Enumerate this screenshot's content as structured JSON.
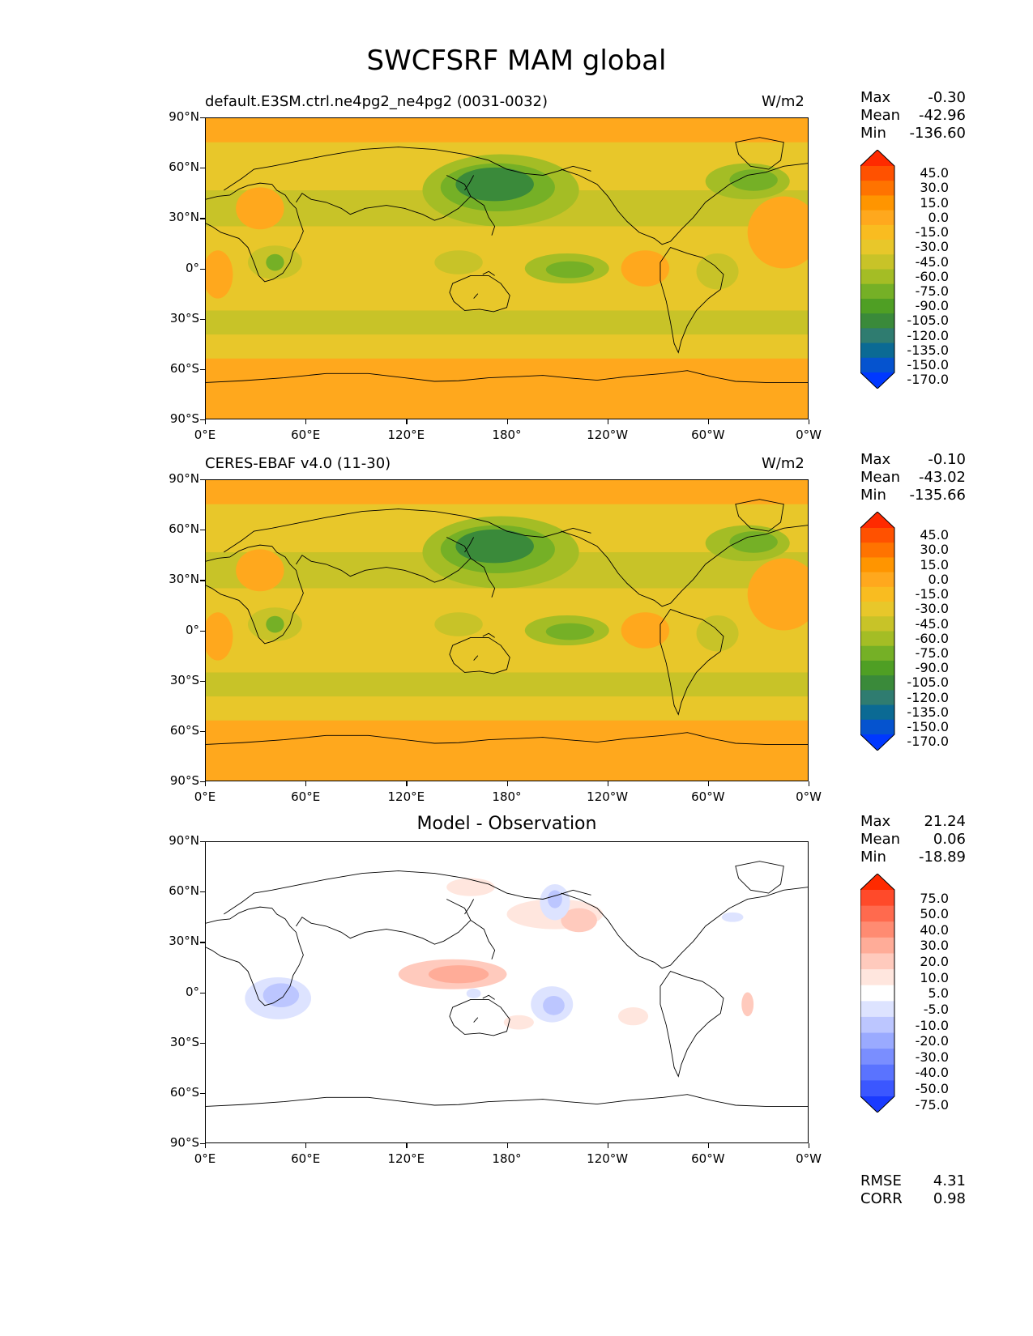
{
  "title": "SWCFSRF MAM global",
  "chart_data": [
    {
      "type": "heatmap",
      "panel_id": "model",
      "left_title": "default.E3SM.ctrl.ne4pg2_ne4pg2 (0031-0032)",
      "right_title": "W/m2",
      "center_title": "",
      "y_ticks": [
        "90°N",
        "60°N",
        "30°N",
        "0°",
        "30°S",
        "60°S",
        "90°S"
      ],
      "x_ticks": [
        "0°E",
        "60°E",
        "120°E",
        "180°",
        "120°W",
        "60°W",
        "0°W"
      ],
      "stats": [
        {
          "label": "Max",
          "value": "-0.30"
        },
        {
          "label": "Mean",
          "value": "-42.96"
        },
        {
          "label": "Min",
          "value": "-136.60"
        }
      ],
      "colorbar": {
        "levels": [
          "45.0",
          "30.0",
          "15.0",
          "0.0",
          "-15.0",
          "-30.0",
          "-45.0",
          "-60.0",
          "-75.0",
          "-90.0",
          "-105.0",
          "-120.0",
          "-135.0",
          "-150.0",
          "-170.0"
        ],
        "colors": [
          "#ff2a00",
          "#ff5100",
          "#ff7300",
          "#ff9500",
          "#ffa81d",
          "#f9bc20",
          "#e8c72a",
          "#c8c328",
          "#a4bd25",
          "#75b026",
          "#4f9f24",
          "#3a8a3a",
          "#2f7c70",
          "#0b6a94",
          "#0553cf",
          "#0038ff"
        ]
      }
    },
    {
      "type": "heatmap",
      "panel_id": "observation",
      "left_title": "CERES-EBAF v4.0 (11-30)",
      "right_title": "W/m2",
      "center_title": "",
      "y_ticks": [
        "90°N",
        "60°N",
        "30°N",
        "0°",
        "30°S",
        "60°S",
        "90°S"
      ],
      "x_ticks": [
        "0°E",
        "60°E",
        "120°E",
        "180°",
        "120°W",
        "60°W",
        "0°W"
      ],
      "stats": [
        {
          "label": "Max",
          "value": "-0.10"
        },
        {
          "label": "Mean",
          "value": "-43.02"
        },
        {
          "label": "Min",
          "value": "-135.66"
        }
      ],
      "colorbar": {
        "levels": [
          "45.0",
          "30.0",
          "15.0",
          "0.0",
          "-15.0",
          "-30.0",
          "-45.0",
          "-60.0",
          "-75.0",
          "-90.0",
          "-105.0",
          "-120.0",
          "-135.0",
          "-150.0",
          "-170.0"
        ],
        "colors": [
          "#ff2a00",
          "#ff5100",
          "#ff7300",
          "#ff9500",
          "#ffa81d",
          "#f9bc20",
          "#e8c72a",
          "#c8c328",
          "#a4bd25",
          "#75b026",
          "#4f9f24",
          "#3a8a3a",
          "#2f7c70",
          "#0b6a94",
          "#0553cf",
          "#0038ff"
        ]
      }
    },
    {
      "type": "heatmap",
      "panel_id": "difference",
      "left_title": "",
      "right_title": "",
      "center_title": "Model - Observation",
      "y_ticks": [
        "90°N",
        "60°N",
        "30°N",
        "0°",
        "30°S",
        "60°S",
        "90°S"
      ],
      "x_ticks": [
        "0°E",
        "60°E",
        "120°E",
        "180°",
        "120°W",
        "60°W",
        "0°W"
      ],
      "stats": [
        {
          "label": "Max",
          "value": "21.24"
        },
        {
          "label": "Mean",
          "value": "0.06"
        },
        {
          "label": "Min",
          "value": "-18.89"
        }
      ],
      "colorbar": {
        "levels": [
          "75.0",
          "50.0",
          "40.0",
          "30.0",
          "20.0",
          "10.0",
          "5.0",
          "-5.0",
          "-10.0",
          "-20.0",
          "-30.0",
          "-40.0",
          "-50.0",
          "-75.0"
        ],
        "colors": [
          "#ff2a00",
          "#ff4a2a",
          "#ff6a4e",
          "#ff8b72",
          "#ffac98",
          "#ffcabd",
          "#ffe6de",
          "#ffffff",
          "#dde3ff",
          "#bcc6ff",
          "#9aaaff",
          "#7a8eff",
          "#5a73ff",
          "#3b57ff",
          "#1a3bff"
        ]
      },
      "summary": [
        {
          "label": "RMSE",
          "value": "4.31"
        },
        {
          "label": "CORR",
          "value": "0.98"
        }
      ]
    }
  ]
}
